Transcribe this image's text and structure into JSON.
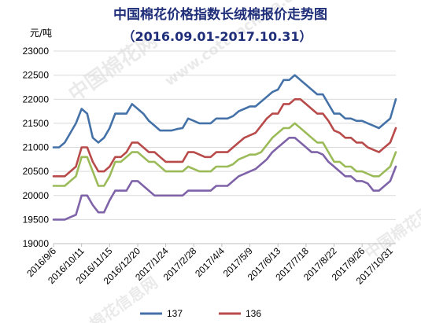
{
  "chart_data": {
    "type": "line",
    "title": "中国棉花价格指数长绒棉报价走势图",
    "subtitle": "（2016.09.01-2017.10.31）",
    "unit": "元/吨",
    "xlabel": "",
    "ylabel": "",
    "ylim": [
      19000,
      23000
    ],
    "yticks": [
      19000,
      19500,
      20000,
      20500,
      21000,
      21500,
      22000,
      22500,
      23000
    ],
    "ytick_labels": [
      "19000",
      "19500",
      "20000",
      "20500",
      "21000",
      "21500",
      "22000",
      "22500",
      "23000"
    ],
    "x_tick_labels": [
      "2016/9/6",
      "2016/10/11",
      "2016/11/15",
      "2016/12/20",
      "2017/1/24",
      "2017/2/28",
      "2017/4/4",
      "2017/5/9",
      "2017/6/13",
      "2017/7/18",
      "2017/8/22",
      "2017/9/26",
      "2017/10/31"
    ],
    "x_tick_positions": [
      0,
      5,
      10,
      15,
      20,
      25,
      30,
      35,
      40,
      45,
      50,
      55,
      60
    ],
    "grid": "horizontal",
    "legend": "bottom",
    "series": [
      {
        "name": "137",
        "color": "#4472a8",
        "values": [
          21000,
          21000,
          21100,
          21300,
          21500,
          21800,
          21700,
          21200,
          21100,
          21200,
          21400,
          21700,
          21700,
          21700,
          21900,
          21800,
          21700,
          21550,
          21450,
          21350,
          21350,
          21350,
          21380,
          21400,
          21600,
          21550,
          21500,
          21500,
          21500,
          21600,
          21600,
          21600,
          21650,
          21750,
          21800,
          21850,
          21850,
          21950,
          22050,
          22150,
          22200,
          22400,
          22400,
          22500,
          22400,
          22300,
          22200,
          22100,
          22100,
          21900,
          21700,
          21700,
          21600,
          21600,
          21550,
          21550,
          21500,
          21450,
          21400,
          21500,
          21600,
          22000
        ]
      },
      {
        "name": "136",
        "color": "#b84a4a",
        "values": [
          20400,
          20400,
          20400,
          20500,
          20600,
          21000,
          21000,
          20700,
          20500,
          20500,
          20600,
          20800,
          20800,
          20900,
          21100,
          21100,
          21000,
          20900,
          20900,
          20800,
          20700,
          20700,
          20700,
          20700,
          20900,
          20900,
          20850,
          20800,
          20800,
          20900,
          20900,
          20900,
          21000,
          21100,
          21200,
          21250,
          21300,
          21450,
          21600,
          21700,
          21700,
          21900,
          21900,
          22000,
          22000,
          21900,
          21800,
          21700,
          21700,
          21550,
          21350,
          21300,
          21200,
          21200,
          21100,
          21100,
          21000,
          20950,
          20900,
          21000,
          21100,
          21400
        ]
      },
      {
        "name": "",
        "color": "#9bbb59",
        "values": [
          20200,
          20200,
          20200,
          20300,
          20400,
          20800,
          20800,
          20500,
          20200,
          20200,
          20400,
          20700,
          20700,
          20800,
          20900,
          20900,
          20800,
          20700,
          20700,
          20600,
          20500,
          20500,
          20500,
          20500,
          20600,
          20550,
          20500,
          20500,
          20500,
          20600,
          20600,
          20600,
          20650,
          20750,
          20800,
          20850,
          20850,
          20900,
          21050,
          21200,
          21300,
          21400,
          21400,
          21500,
          21400,
          21300,
          21200,
          21100,
          21100,
          20900,
          20700,
          20700,
          20600,
          20600,
          20500,
          20500,
          20450,
          20400,
          20400,
          20500,
          20600,
          20900
        ]
      },
      {
        "name": "",
        "color": "#7f63a8",
        "values": [
          19500,
          19500,
          19500,
          19550,
          19600,
          20000,
          20000,
          19800,
          19650,
          19650,
          19900,
          20100,
          20100,
          20100,
          20300,
          20300,
          20200,
          20100,
          20000,
          20000,
          20000,
          20000,
          20000,
          20000,
          20100,
          20100,
          20100,
          20100,
          20100,
          20200,
          20200,
          20200,
          20300,
          20400,
          20450,
          20500,
          20550,
          20650,
          20750,
          20900,
          21000,
          21100,
          21200,
          21200,
          21100,
          21000,
          20900,
          20900,
          20850,
          20700,
          20600,
          20500,
          20400,
          20400,
          20300,
          20300,
          20250,
          20100,
          20100,
          20200,
          20300,
          20600
        ]
      }
    ]
  }
}
